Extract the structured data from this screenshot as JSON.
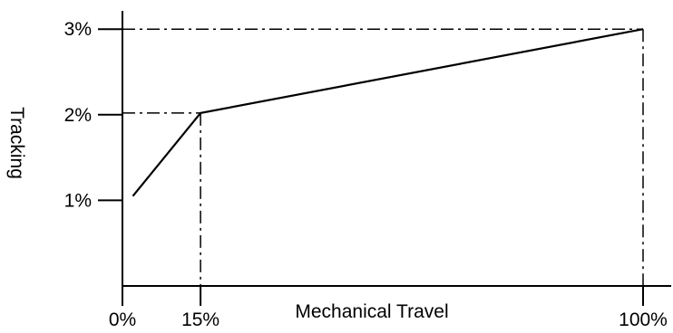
{
  "chart_data": {
    "type": "line",
    "xlabel": "Mechanical Travel",
    "ylabel": "Tracking",
    "x_ticks": [
      {
        "value": 0,
        "label": "0%"
      },
      {
        "value": 15,
        "label": "15%"
      },
      {
        "value": 100,
        "label": "100%"
      }
    ],
    "y_ticks": [
      {
        "value": 1,
        "label": "1%"
      },
      {
        "value": 2,
        "label": "2%"
      },
      {
        "value": 3,
        "label": "3%"
      }
    ],
    "xlim": [
      0,
      100
    ],
    "ylim": [
      0,
      3.3
    ],
    "grid": false,
    "series": [
      {
        "x": [
          2,
          15,
          100
        ],
        "y": [
          1.05,
          2.02,
          3.0
        ]
      }
    ],
    "reference_lines": [
      {
        "x": 15,
        "y": 2.02
      },
      {
        "x": 100,
        "y": 3.0
      }
    ]
  }
}
